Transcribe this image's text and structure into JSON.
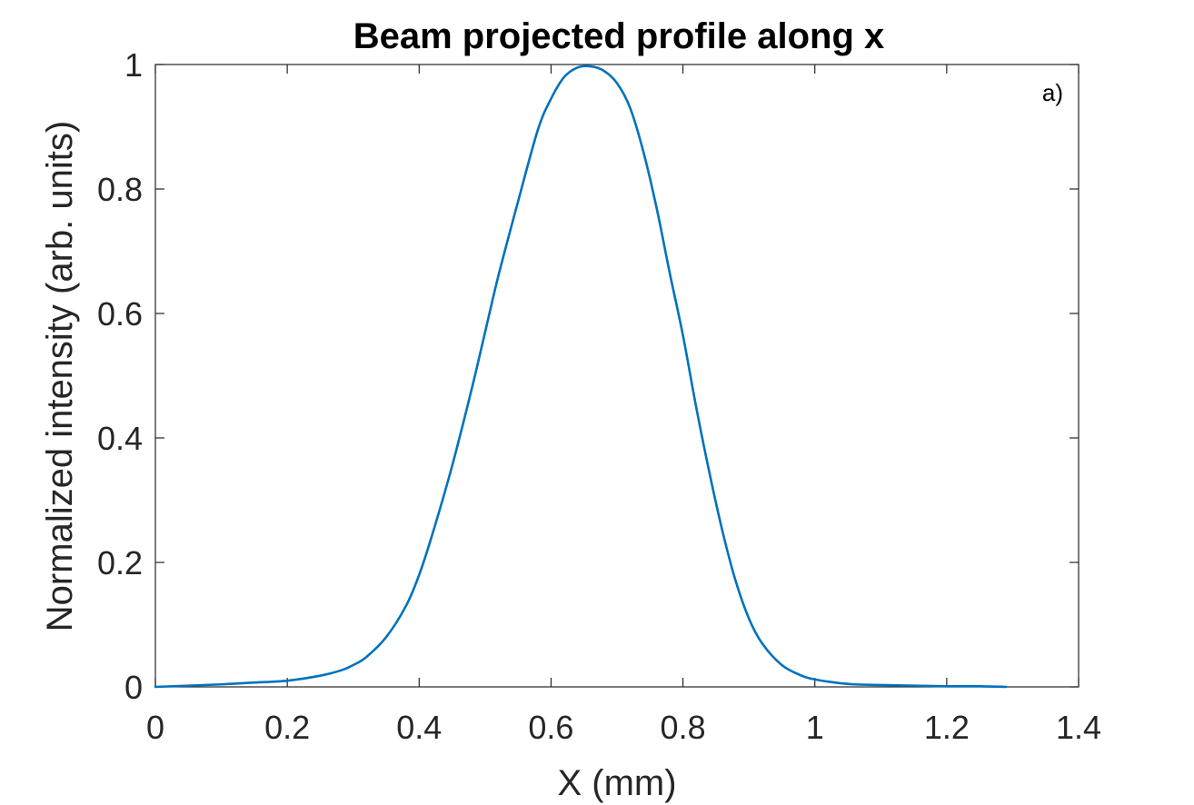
{
  "chart_data": {
    "type": "line",
    "title": "Beam projected profile along x",
    "xlabel": "X (mm)",
    "ylabel": "Normalized intensity (arb. units)",
    "annotation": "a)",
    "xlim": [
      0,
      1.4
    ],
    "ylim": [
      0,
      1
    ],
    "xticks": [
      0,
      0.2,
      0.4,
      0.6,
      0.8,
      1.0,
      1.2,
      1.4
    ],
    "xtick_labels": [
      "0",
      "0.2",
      "0.4",
      "0.6",
      "0.8",
      "1",
      "1.2",
      "1.4"
    ],
    "yticks": [
      0,
      0.2,
      0.4,
      0.6,
      0.8,
      1.0
    ],
    "ytick_labels": [
      "0",
      "0.2",
      "0.4",
      "0.6",
      "0.8",
      "1"
    ],
    "grid": false,
    "series": [
      {
        "color": "#0072BD",
        "x": [
          0.0,
          0.05,
          0.1,
          0.15,
          0.2,
          0.25,
          0.28,
          0.3,
          0.32,
          0.35,
          0.38,
          0.4,
          0.42,
          0.45,
          0.48,
          0.5,
          0.52,
          0.55,
          0.58,
          0.6,
          0.62,
          0.64,
          0.66,
          0.68,
          0.7,
          0.72,
          0.74,
          0.76,
          0.78,
          0.8,
          0.82,
          0.84,
          0.86,
          0.88,
          0.9,
          0.92,
          0.95,
          0.98,
          1.0,
          1.03,
          1.06,
          1.1,
          1.15,
          1.2,
          1.25,
          1.29
        ],
        "y": [
          0.0,
          0.002,
          0.004,
          0.007,
          0.01,
          0.018,
          0.026,
          0.035,
          0.048,
          0.08,
          0.13,
          0.18,
          0.245,
          0.355,
          0.48,
          0.57,
          0.66,
          0.78,
          0.895,
          0.945,
          0.98,
          0.995,
          0.997,
          0.99,
          0.97,
          0.93,
          0.86,
          0.77,
          0.665,
          0.565,
          0.45,
          0.345,
          0.25,
          0.17,
          0.11,
          0.07,
          0.035,
          0.018,
          0.012,
          0.007,
          0.004,
          0.003,
          0.002,
          0.001,
          0.001,
          0.0
        ]
      }
    ]
  }
}
